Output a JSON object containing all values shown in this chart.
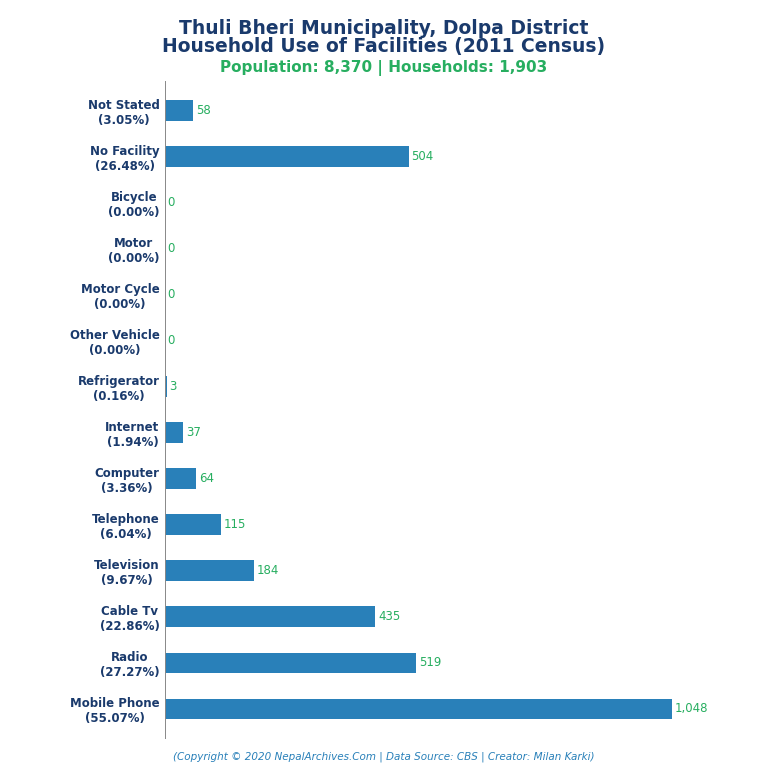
{
  "title_line1": "Thuli Bheri Municipality, Dolpa District",
  "title_line2": "Household Use of Facilities (2011 Census)",
  "subtitle": "Population: 8,370 | Households: 1,903",
  "footer": "(Copyright © 2020 NepalArchives.Com | Data Source: CBS | Creator: Milan Karki)",
  "categories": [
    "Not Stated\n(3.05%)",
    "No Facility\n(26.48%)",
    "Bicycle\n(0.00%)",
    "Motor\n(0.00%)",
    "Motor Cycle\n(0.00%)",
    "Other Vehicle\n(0.00%)",
    "Refrigerator\n(0.16%)",
    "Internet\n(1.94%)",
    "Computer\n(3.36%)",
    "Telephone\n(6.04%)",
    "Television\n(9.67%)",
    "Cable Tv\n(22.86%)",
    "Radio\n(27.27%)",
    "Mobile Phone\n(55.07%)"
  ],
  "values": [
    58,
    504,
    0,
    0,
    0,
    0,
    3,
    37,
    64,
    115,
    184,
    435,
    519,
    1048
  ],
  "bar_color": "#2980b9",
  "title_color": "#1a3a6c",
  "subtitle_color": "#27ae60",
  "value_color": "#27ae60",
  "footer_color": "#2980b9",
  "background_color": "#ffffff",
  "xlim": [
    0,
    1200
  ]
}
